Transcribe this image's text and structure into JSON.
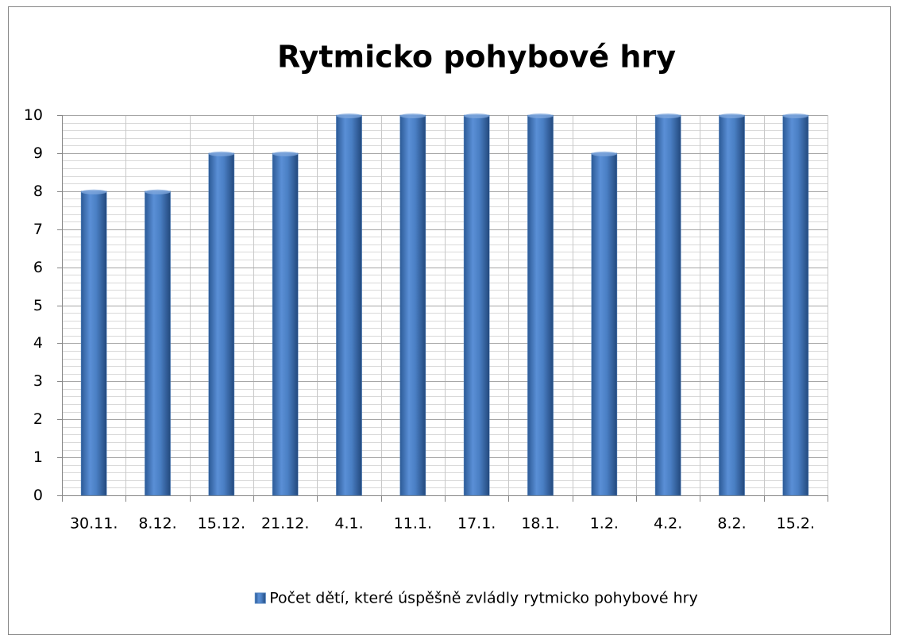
{
  "chart_data": {
    "type": "bar",
    "title": "Rytmicko pohybové hry",
    "categories": [
      "30.11.",
      "8.12.",
      "15.12.",
      "21.12.",
      "4.1.",
      "11.1.",
      "17.1.",
      "18.1.",
      "1.2.",
      "4.2.",
      "8.2.",
      "15.2."
    ],
    "series": [
      {
        "name": "Počet dětí, které úspěšně zvládly rytmicko pohybové hry",
        "color": "#4f81bd",
        "values": [
          8,
          8,
          9,
          9,
          10,
          10,
          10,
          10,
          9,
          10,
          10,
          10
        ]
      }
    ],
    "ylim": [
      0,
      10
    ],
    "yticks": [
      0,
      1,
      2,
      3,
      4,
      5,
      6,
      7,
      8,
      9,
      10
    ],
    "grid": true,
    "legend": "bottom"
  }
}
